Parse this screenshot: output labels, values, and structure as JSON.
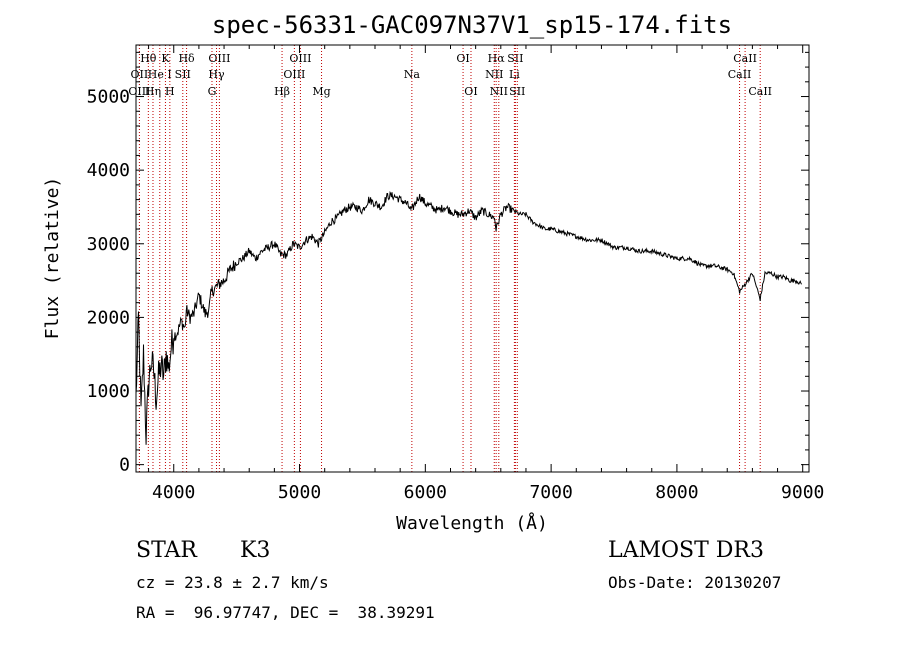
{
  "chart_data": {
    "type": "line",
    "title": "spec-56331-GAC097N37V1_sp15-174.fits",
    "xlabel": "Wavelength (Å)",
    "ylabel": "Flux (relative)",
    "xlim": [
      3700,
      9050
    ],
    "ylim": [
      -100,
      5700
    ],
    "x_ticks": [
      4000,
      5000,
      6000,
      7000,
      8000,
      9000
    ],
    "y_ticks": [
      0,
      1000,
      2000,
      3000,
      4000,
      5000
    ],
    "grid": false,
    "series": [
      {
        "name": "flux",
        "x": [
          3700,
          3720,
          3740,
          3760,
          3780,
          3800,
          3820,
          3840,
          3860,
          3880,
          3900,
          3920,
          3940,
          3960,
          3980,
          4000,
          4030,
          4060,
          4090,
          4100,
          4130,
          4160,
          4200,
          4250,
          4280,
          4300,
          4330,
          4360,
          4400,
          4450,
          4500,
          4550,
          4600,
          4650,
          4700,
          4750,
          4800,
          4850,
          4900,
          4950,
          5000,
          5050,
          5100,
          5150,
          5200,
          5250,
          5300,
          5350,
          5400,
          5450,
          5500,
          5550,
          5600,
          5650,
          5700,
          5750,
          5800,
          5850,
          5890,
          5950,
          6000,
          6050,
          6100,
          6150,
          6200,
          6250,
          6300,
          6350,
          6400,
          6450,
          6500,
          6550,
          6563,
          6600,
          6650,
          6700,
          6750,
          6800,
          6850,
          6900,
          6950,
          7000,
          7100,
          7200,
          7300,
          7400,
          7500,
          7600,
          7700,
          7800,
          7900,
          8000,
          8100,
          8200,
          8300,
          8400,
          8450,
          8498,
          8542,
          8600,
          8662,
          8700,
          8750,
          8800,
          8850,
          8900,
          8950,
          8990
        ],
        "y": [
          900,
          2000,
          700,
          1500,
          400,
          1100,
          1400,
          1300,
          900,
          1200,
          1350,
          1200,
          1500,
          1300,
          1600,
          1750,
          1800,
          1950,
          1850,
          2100,
          2000,
          2050,
          2300,
          2050,
          2100,
          2350,
          2400,
          2450,
          2500,
          2650,
          2750,
          2800,
          2900,
          2800,
          2900,
          2950,
          3000,
          2850,
          2850,
          3000,
          2950,
          3050,
          3100,
          3000,
          3150,
          3300,
          3350,
          3450,
          3500,
          3500,
          3450,
          3600,
          3550,
          3500,
          3650,
          3650,
          3600,
          3550,
          3450,
          3650,
          3550,
          3500,
          3450,
          3500,
          3450,
          3400,
          3400,
          3450,
          3350,
          3450,
          3400,
          3350,
          3200,
          3400,
          3500,
          3450,
          3400,
          3400,
          3300,
          3250,
          3200,
          3200,
          3150,
          3100,
          3050,
          3050,
          2950,
          2950,
          2900,
          2900,
          2850,
          2800,
          2800,
          2700,
          2700,
          2650,
          2600,
          2350,
          2450,
          2600,
          2250,
          2600,
          2600,
          2550,
          2550,
          2500,
          2500,
          2450
        ]
      }
    ],
    "line_markers": [
      {
        "label": "Hθ",
        "wavelength": 3798,
        "row": 1
      },
      {
        "label": "OII",
        "wavelength": 3727,
        "row": 2
      },
      {
        "label": "OIII",
        "wavelength": 3727,
        "row": 3
      },
      {
        "label": "He I",
        "wavelength": 3889,
        "row": 2
      },
      {
        "label": "Hη",
        "wavelength": 3835,
        "row": 3
      },
      {
        "label": "K",
        "wavelength": 3934,
        "row": 1
      },
      {
        "label": "SII",
        "wavelength": 4072,
        "row": 2
      },
      {
        "label": "H",
        "wavelength": 3969,
        "row": 3
      },
      {
        "label": "Hδ",
        "wavelength": 4102,
        "row": 1
      },
      {
        "label": "OIII",
        "wavelength": 4363,
        "row": 1
      },
      {
        "label": "Hγ",
        "wavelength": 4340,
        "row": 2
      },
      {
        "label": "G",
        "wavelength": 4304,
        "row": 3
      },
      {
        "label": "OIII",
        "wavelength": 5007,
        "row": 1
      },
      {
        "label": "OIII",
        "wavelength": 4959,
        "row": 2
      },
      {
        "label": "Hβ",
        "wavelength": 4861,
        "row": 3
      },
      {
        "label": "Mg",
        "wavelength": 5175,
        "row": 3
      },
      {
        "label": "Na",
        "wavelength": 5893,
        "row": 2
      },
      {
        "label": "OI",
        "wavelength": 6300,
        "row": 1
      },
      {
        "label": "OI",
        "wavelength": 6363,
        "row": 3
      },
      {
        "label": "Hα",
        "wavelength": 6563,
        "row": 1
      },
      {
        "label": "NII",
        "wavelength": 6548,
        "row": 2
      },
      {
        "label": "NII",
        "wavelength": 6584,
        "row": 3
      },
      {
        "label": "SII",
        "wavelength": 6716,
        "row": 1
      },
      {
        "label": "Li",
        "wavelength": 6708,
        "row": 2
      },
      {
        "label": "SII",
        "wavelength": 6731,
        "row": 3
      },
      {
        "label": "CaII",
        "wavelength": 8542,
        "row": 1
      },
      {
        "label": "CaII",
        "wavelength": 8498,
        "row": 2
      },
      {
        "label": "CaII",
        "wavelength": 8662,
        "row": 3
      }
    ]
  },
  "footer": {
    "object_type": "STAR",
    "subclass": "K3",
    "redshift": "cz = 23.8 ± 2.7 km/s",
    "coordinates": "RA =  96.97747, DEC =  38.39291",
    "survey": "LAMOST DR3",
    "obs_date": "Obs-Date: 20130207"
  }
}
